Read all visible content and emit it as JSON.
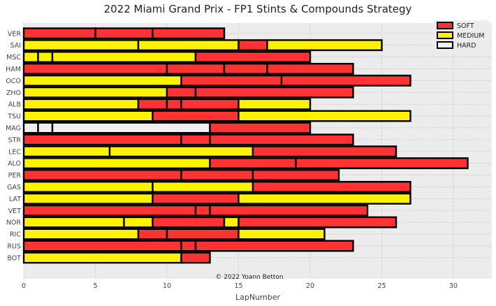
{
  "chart_data": {
    "type": "bar",
    "orientation": "horizontal-stacked",
    "title": "2022 Miami Grand Prix - FP1 Stints & Compounds Strategy",
    "xlabel": "LapNumber",
    "ylabel": "",
    "xlim": [
      0,
      32.8
    ],
    "x_ticks": [
      "0",
      "5",
      "10",
      "15",
      "20",
      "25",
      "30"
    ],
    "grid": true,
    "legend_position": "top-right",
    "credit": "© 2022 Yoann Betton",
    "compounds": [
      {
        "name": "SOFT",
        "color": "#ff3333"
      },
      {
        "name": "MEDIUM",
        "color": "#fff200"
      },
      {
        "name": "HARD",
        "color": "#f0f0f0"
      }
    ],
    "drivers": [
      "VER",
      "SAI",
      "MSC",
      "HAM",
      "OCO",
      "ZHO",
      "ALB",
      "TSU",
      "MAG",
      "STR",
      "LEC",
      "ALO",
      "PER",
      "GAS",
      "LAT",
      "VET",
      "NOR",
      "RIC",
      "RUS",
      "BOT"
    ],
    "stints": [
      {
        "driver": "VER",
        "segments": [
          {
            "compound": "SOFT",
            "start": 0,
            "end": 5
          },
          {
            "compound": "SOFT",
            "start": 5,
            "end": 9
          },
          {
            "compound": "SOFT",
            "start": 9,
            "end": 14
          }
        ]
      },
      {
        "driver": "SAI",
        "segments": [
          {
            "compound": "MEDIUM",
            "start": 0,
            "end": 8
          },
          {
            "compound": "MEDIUM",
            "start": 8,
            "end": 15
          },
          {
            "compound": "SOFT",
            "start": 15,
            "end": 17
          },
          {
            "compound": "MEDIUM",
            "start": 17,
            "end": 25
          }
        ]
      },
      {
        "driver": "MSC",
        "segments": [
          {
            "compound": "MEDIUM",
            "start": 0,
            "end": 1
          },
          {
            "compound": "MEDIUM",
            "start": 1,
            "end": 2
          },
          {
            "compound": "MEDIUM",
            "start": 2,
            "end": 12
          },
          {
            "compound": "SOFT",
            "start": 12,
            "end": 20
          }
        ]
      },
      {
        "driver": "HAM",
        "segments": [
          {
            "compound": "SOFT",
            "start": 0,
            "end": 10
          },
          {
            "compound": "SOFT",
            "start": 10,
            "end": 14
          },
          {
            "compound": "SOFT",
            "start": 14,
            "end": 17
          },
          {
            "compound": "SOFT",
            "start": 17,
            "end": 23
          }
        ]
      },
      {
        "driver": "OCO",
        "segments": [
          {
            "compound": "MEDIUM",
            "start": 0,
            "end": 11
          },
          {
            "compound": "SOFT",
            "start": 11,
            "end": 18
          },
          {
            "compound": "SOFT",
            "start": 18,
            "end": 27
          }
        ]
      },
      {
        "driver": "ZHO",
        "segments": [
          {
            "compound": "MEDIUM",
            "start": 0,
            "end": 10
          },
          {
            "compound": "SOFT",
            "start": 10,
            "end": 12
          },
          {
            "compound": "SOFT",
            "start": 12,
            "end": 23
          }
        ]
      },
      {
        "driver": "ALB",
        "segments": [
          {
            "compound": "MEDIUM",
            "start": 0,
            "end": 8
          },
          {
            "compound": "SOFT",
            "start": 8,
            "end": 10
          },
          {
            "compound": "SOFT",
            "start": 10,
            "end": 11
          },
          {
            "compound": "SOFT",
            "start": 11,
            "end": 15
          },
          {
            "compound": "MEDIUM",
            "start": 15,
            "end": 20
          }
        ]
      },
      {
        "driver": "TSU",
        "segments": [
          {
            "compound": "MEDIUM",
            "start": 0,
            "end": 9
          },
          {
            "compound": "SOFT",
            "start": 9,
            "end": 15
          },
          {
            "compound": "MEDIUM",
            "start": 15,
            "end": 27
          }
        ]
      },
      {
        "driver": "MAG",
        "segments": [
          {
            "compound": "HARD",
            "start": 0,
            "end": 1
          },
          {
            "compound": "HARD",
            "start": 1,
            "end": 2
          },
          {
            "compound": "HARD",
            "start": 2,
            "end": 13
          },
          {
            "compound": "SOFT",
            "start": 13,
            "end": 20
          }
        ]
      },
      {
        "driver": "STR",
        "segments": [
          {
            "compound": "SOFT",
            "start": 0,
            "end": 11
          },
          {
            "compound": "SOFT",
            "start": 11,
            "end": 13
          },
          {
            "compound": "SOFT",
            "start": 13,
            "end": 23
          }
        ]
      },
      {
        "driver": "LEC",
        "segments": [
          {
            "compound": "MEDIUM",
            "start": 0,
            "end": 6
          },
          {
            "compound": "MEDIUM",
            "start": 6,
            "end": 16
          },
          {
            "compound": "SOFT",
            "start": 16,
            "end": 26
          }
        ]
      },
      {
        "driver": "ALO",
        "segments": [
          {
            "compound": "MEDIUM",
            "start": 0,
            "end": 13
          },
          {
            "compound": "SOFT",
            "start": 13,
            "end": 19
          },
          {
            "compound": "SOFT",
            "start": 19,
            "end": 31
          }
        ]
      },
      {
        "driver": "PER",
        "segments": [
          {
            "compound": "SOFT",
            "start": 0,
            "end": 11
          },
          {
            "compound": "SOFT",
            "start": 11,
            "end": 16
          },
          {
            "compound": "SOFT",
            "start": 16,
            "end": 22
          }
        ]
      },
      {
        "driver": "GAS",
        "segments": [
          {
            "compound": "MEDIUM",
            "start": 0,
            "end": 9
          },
          {
            "compound": "MEDIUM",
            "start": 9,
            "end": 16
          },
          {
            "compound": "SOFT",
            "start": 16,
            "end": 27
          }
        ]
      },
      {
        "driver": "LAT",
        "segments": [
          {
            "compound": "MEDIUM",
            "start": 0,
            "end": 9
          },
          {
            "compound": "SOFT",
            "start": 9,
            "end": 15
          },
          {
            "compound": "MEDIUM",
            "start": 15,
            "end": 27
          }
        ]
      },
      {
        "driver": "VET",
        "segments": [
          {
            "compound": "SOFT",
            "start": 0,
            "end": 12
          },
          {
            "compound": "SOFT",
            "start": 12,
            "end": 13
          },
          {
            "compound": "SOFT",
            "start": 13,
            "end": 24
          }
        ]
      },
      {
        "driver": "NOR",
        "segments": [
          {
            "compound": "MEDIUM",
            "start": 0,
            "end": 7
          },
          {
            "compound": "MEDIUM",
            "start": 7,
            "end": 9
          },
          {
            "compound": "SOFT",
            "start": 9,
            "end": 14
          },
          {
            "compound": "MEDIUM",
            "start": 14,
            "end": 15
          },
          {
            "compound": "SOFT",
            "start": 15,
            "end": 26
          }
        ]
      },
      {
        "driver": "RIC",
        "segments": [
          {
            "compound": "MEDIUM",
            "start": 0,
            "end": 8
          },
          {
            "compound": "SOFT",
            "start": 8,
            "end": 10
          },
          {
            "compound": "SOFT",
            "start": 10,
            "end": 15
          },
          {
            "compound": "MEDIUM",
            "start": 15,
            "end": 21
          }
        ]
      },
      {
        "driver": "RUS",
        "segments": [
          {
            "compound": "SOFT",
            "start": 0,
            "end": 11
          },
          {
            "compound": "SOFT",
            "start": 11,
            "end": 12
          },
          {
            "compound": "SOFT",
            "start": 12,
            "end": 23
          }
        ]
      },
      {
        "driver": "BOT",
        "segments": [
          {
            "compound": "MEDIUM",
            "start": 0,
            "end": 11
          },
          {
            "compound": "SOFT",
            "start": 11,
            "end": 13
          }
        ]
      }
    ]
  }
}
